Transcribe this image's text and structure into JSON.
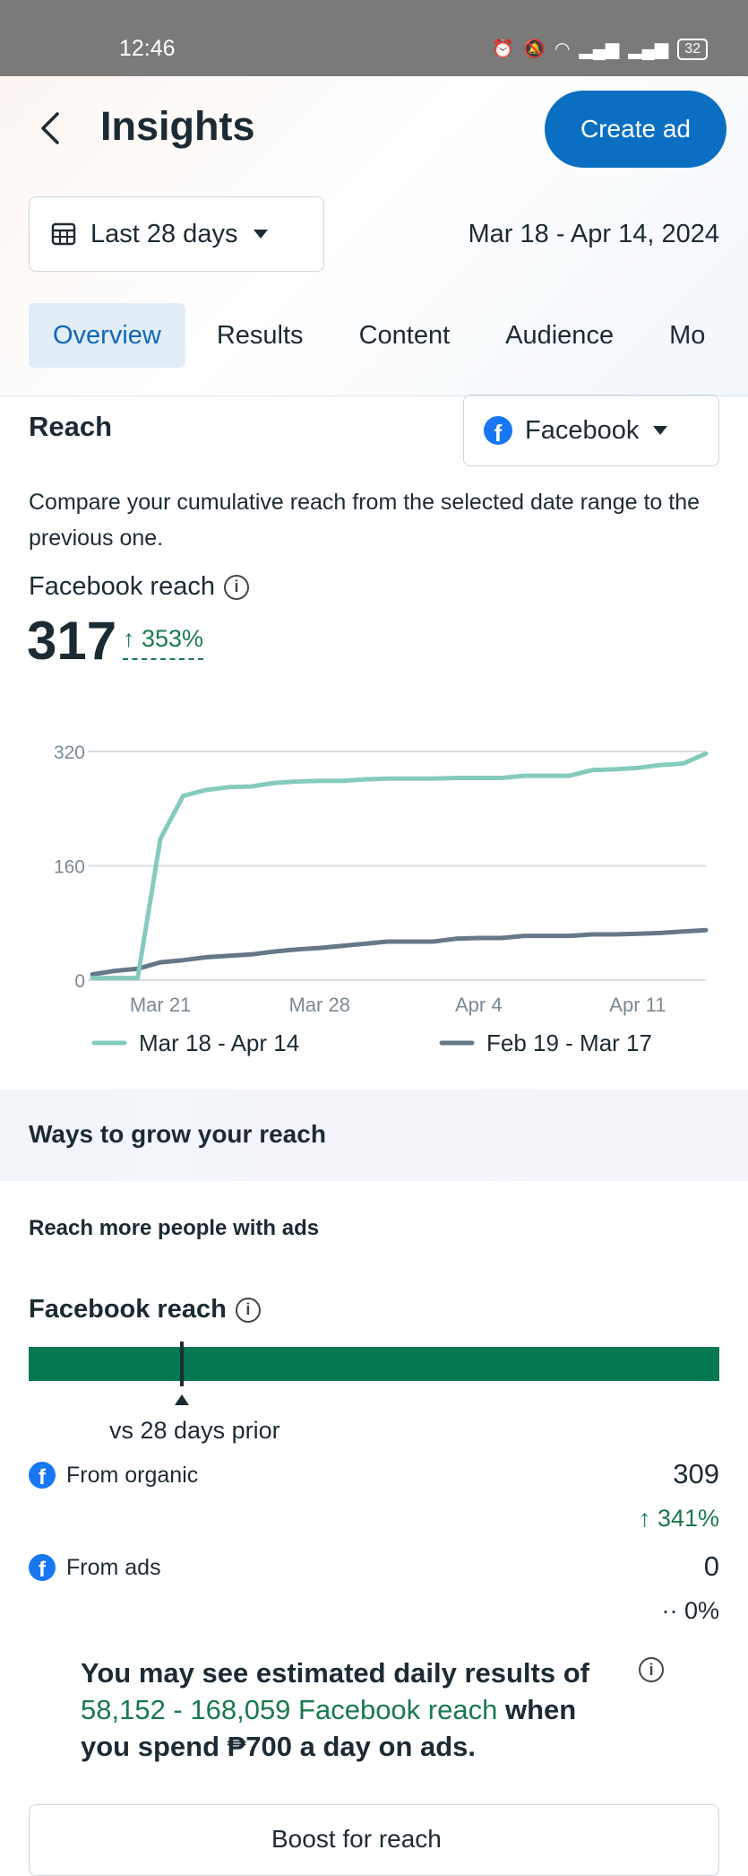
{
  "status_bar": {
    "time": "12:46",
    "battery": "32"
  },
  "header": {
    "title": "Insights",
    "create_ad_label": "Create ad"
  },
  "date_filter": {
    "selected": "Last 28 days",
    "range": "Mar 18 - Apr 14, 2024"
  },
  "tabs": [
    {
      "label": "Overview",
      "active": true
    },
    {
      "label": "Results"
    },
    {
      "label": "Content"
    },
    {
      "label": "Audience"
    },
    {
      "label": "Mo"
    }
  ],
  "reach": {
    "title": "Reach",
    "platform": "Facebook",
    "description": "Compare your cumulative reach from the selected date range to the previous one.",
    "metric_label": "Facebook reach",
    "value": "317",
    "change": "↑ 353%"
  },
  "chart_data": {
    "type": "line",
    "y_ticks": [
      "320",
      "160",
      "0"
    ],
    "x_ticks": [
      "Mar 21",
      "Mar 28",
      "Apr 4",
      "Apr 11"
    ],
    "ylim": [
      0,
      320
    ],
    "grid": true,
    "legend_position": "bottom",
    "series": [
      {
        "name": "Mar 18 - Apr 14",
        "color": "#85cbbd",
        "values": [
          3,
          3,
          3,
          198,
          258,
          266,
          270,
          271,
          276,
          278,
          279,
          279,
          281,
          282,
          282,
          282,
          283,
          283,
          283,
          286,
          286,
          286,
          294,
          295,
          297,
          301,
          303,
          317
        ]
      },
      {
        "name": "Feb 19 - Mar 17",
        "color": "#667788",
        "values": [
          8,
          13,
          16,
          25,
          28,
          32,
          34,
          36,
          40,
          43,
          45,
          48,
          51,
          54,
          54,
          54,
          58,
          59,
          59,
          62,
          62,
          62,
          64,
          64,
          65,
          66,
          68,
          70
        ]
      }
    ]
  },
  "grow": {
    "title": "Ways to grow your reach",
    "subtitle": "Reach more people with ads",
    "metric_label": "Facebook reach",
    "bar_marker_fraction": 0.22,
    "comparison_label": "vs 28 days prior",
    "sources": [
      {
        "label": "From organic",
        "value": "309",
        "change": "↑ 341%"
      },
      {
        "label": "From ads",
        "value": "0",
        "change": "·· 0%"
      }
    ]
  },
  "estimate": {
    "line1": "You may see estimated daily results of ",
    "highlight": "58,152 - 168,059 Facebook reach",
    "line2": " when you spend ₱700 a day on ads."
  },
  "bottom_card": {
    "label": "Boost for reach"
  },
  "icons": {
    "back": "chevron-left-icon",
    "calendar": "calendar-icon",
    "dropdown": "caret-down-icon",
    "facebook": "facebook-logo-icon",
    "info": "info-icon"
  }
}
